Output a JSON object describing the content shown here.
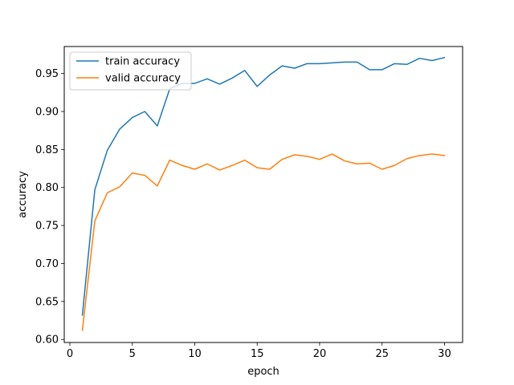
{
  "chart_data": {
    "type": "line",
    "xlabel": "epoch",
    "ylabel": "accuracy",
    "xlim": [
      -0.45,
      31.45
    ],
    "ylim": [
      0.596,
      0.9855
    ],
    "xticks": [
      0,
      5,
      10,
      15,
      20,
      25,
      30
    ],
    "yticks": [
      0.6,
      0.65,
      0.7,
      0.75,
      0.8,
      0.85,
      0.9,
      0.95
    ],
    "ytick_labels": [
      "0.60",
      "0.65",
      "0.70",
      "0.75",
      "0.80",
      "0.85",
      "0.90",
      "0.95"
    ],
    "grid": false,
    "legend_position": "upper-left",
    "x": [
      1,
      2,
      3,
      4,
      5,
      6,
      7,
      8,
      9,
      10,
      11,
      12,
      13,
      14,
      15,
      16,
      17,
      18,
      19,
      20,
      21,
      22,
      23,
      24,
      25,
      26,
      27,
      28,
      29,
      30
    ],
    "series": [
      {
        "name": "train accuracy",
        "color": "#1f77b4",
        "values": [
          0.632,
          0.797,
          0.849,
          0.877,
          0.892,
          0.9,
          0.881,
          0.93,
          0.937,
          0.937,
          0.943,
          0.936,
          0.944,
          0.954,
          0.933,
          0.948,
          0.96,
          0.957,
          0.963,
          0.963,
          0.964,
          0.965,
          0.965,
          0.955,
          0.955,
          0.963,
          0.962,
          0.97,
          0.967,
          0.971
        ]
      },
      {
        "name": "valid accuracy",
        "color": "#ff7f0e",
        "values": [
          0.612,
          0.756,
          0.793,
          0.801,
          0.819,
          0.816,
          0.802,
          0.836,
          0.829,
          0.824,
          0.831,
          0.823,
          0.829,
          0.836,
          0.826,
          0.824,
          0.837,
          0.843,
          0.841,
          0.837,
          0.844,
          0.835,
          0.831,
          0.832,
          0.824,
          0.829,
          0.838,
          0.842,
          0.844,
          0.842
        ]
      }
    ]
  }
}
